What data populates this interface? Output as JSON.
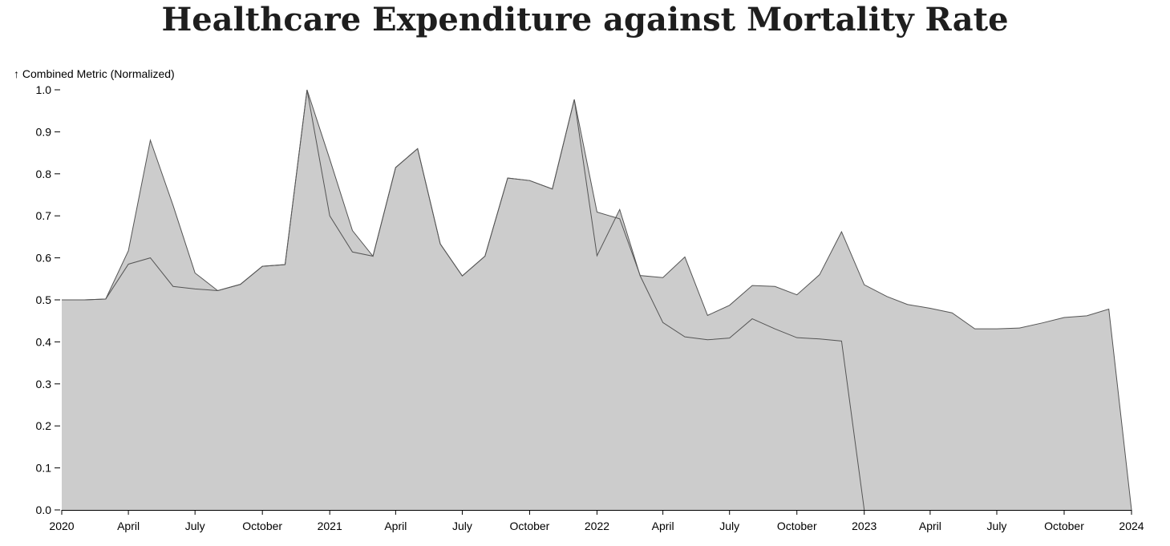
{
  "chart_data": {
    "type": "area",
    "title": "Healthcare Expenditure against Mortality Rate",
    "ylabel": "↑ Combined Metric (Normalized)",
    "xlabel": "",
    "xlim": [
      "2020-01-01",
      "2024-01-01"
    ],
    "ylim": [
      0,
      1.0
    ],
    "grid": false,
    "fill_color": "#cccccc",
    "stroke_color": "#555555",
    "y_ticks": [
      "0.0",
      "0.1",
      "0.2",
      "0.3",
      "0.4",
      "0.5",
      "0.6",
      "0.7",
      "0.8",
      "0.9",
      "1.0"
    ],
    "x_ticks": [
      {
        "date": "2020-01-01",
        "label": "2020"
      },
      {
        "date": "2020-04-01",
        "label": "April"
      },
      {
        "date": "2020-07-01",
        "label": "July"
      },
      {
        "date": "2020-10-01",
        "label": "October"
      },
      {
        "date": "2021-01-01",
        "label": "2021"
      },
      {
        "date": "2021-04-01",
        "label": "April"
      },
      {
        "date": "2021-07-01",
        "label": "July"
      },
      {
        "date": "2021-10-01",
        "label": "October"
      },
      {
        "date": "2022-01-01",
        "label": "2022"
      },
      {
        "date": "2022-04-01",
        "label": "April"
      },
      {
        "date": "2022-07-01",
        "label": "July"
      },
      {
        "date": "2022-10-01",
        "label": "October"
      },
      {
        "date": "2023-01-01",
        "label": "2023"
      },
      {
        "date": "2023-04-01",
        "label": "April"
      },
      {
        "date": "2023-07-01",
        "label": "July"
      },
      {
        "date": "2023-10-01",
        "label": "October"
      },
      {
        "date": "2024-01-01",
        "label": "2024"
      }
    ],
    "series": [
      {
        "x": [
          "2020-01-01",
          "2020-02-01",
          "2020-03-01",
          "2020-04-01",
          "2020-05-01",
          "2020-06-01",
          "2020-07-01",
          "2020-08-01",
          "2020-09-01",
          "2020-10-01",
          "2020-11-01",
          "2020-12-01",
          "2021-01-01",
          "2021-02-01",
          "2021-03-01",
          "2021-04-01",
          "2021-05-01",
          "2021-06-01",
          "2021-07-01",
          "2021-08-01",
          "2021-09-01",
          "2021-10-01",
          "2021-11-01",
          "2021-12-01",
          "2022-01-01",
          "2022-02-01",
          "2022-03-01",
          "2022-04-01",
          "2022-05-01",
          "2022-06-01",
          "2022-07-01",
          "2022-08-01",
          "2022-09-01",
          "2022-10-01",
          "2022-11-01",
          "2022-12-01",
          "2023-01-01"
        ],
        "values": [
          0.5,
          0.5,
          0.502,
          0.585,
          0.6,
          0.532,
          0.526,
          0.522,
          0.537,
          0.58,
          0.584,
          1.0,
          0.7,
          0.614,
          0.604,
          0.815,
          0.86,
          0.633,
          0.557,
          0.604,
          0.79,
          0.784,
          0.764,
          0.977,
          0.605,
          0.715,
          0.557,
          0.446,
          0.412,
          0.405,
          0.409,
          0.455,
          0.431,
          0.41,
          0.407,
          0.402,
          0.0
        ]
      },
      {
        "x": [
          "2020-01-01",
          "2020-02-01",
          "2020-03-01",
          "2020-04-01",
          "2020-05-01",
          "2020-06-01",
          "2020-07-01",
          "2020-08-01",
          "2020-09-01",
          "2020-10-01",
          "2020-11-01",
          "2020-12-01",
          "2021-01-01",
          "2021-02-01",
          "2021-03-01",
          "2021-04-01",
          "2021-05-01",
          "2021-06-01",
          "2021-07-01",
          "2021-08-01",
          "2021-09-01",
          "2021-10-01",
          "2021-11-01",
          "2021-12-01",
          "2022-01-01",
          "2022-02-01",
          "2022-03-01",
          "2022-04-01",
          "2022-05-01",
          "2022-06-01",
          "2022-07-01",
          "2022-08-01",
          "2022-09-01",
          "2022-10-01",
          "2022-11-01",
          "2022-12-01",
          "2023-01-01",
          "2023-02-01",
          "2023-03-01",
          "2023-04-01",
          "2023-05-01",
          "2023-06-01",
          "2023-07-01",
          "2023-08-01",
          "2023-09-01",
          "2023-10-01",
          "2023-11-01",
          "2023-12-01",
          "2024-01-01"
        ],
        "values": [
          0.5,
          0.5,
          0.502,
          0.617,
          0.88,
          0.725,
          0.564,
          0.522,
          0.537,
          0.58,
          0.584,
          1.0,
          0.835,
          0.665,
          0.604,
          0.815,
          0.86,
          0.633,
          0.557,
          0.604,
          0.79,
          0.784,
          0.764,
          0.977,
          0.709,
          0.693,
          0.558,
          0.553,
          0.602,
          0.463,
          0.487,
          0.534,
          0.532,
          0.512,
          0.56,
          0.662,
          0.536,
          0.508,
          0.489,
          0.48,
          0.469,
          0.431,
          0.431,
          0.433,
          0.445,
          0.458,
          0.462,
          0.478,
          0.0
        ]
      }
    ]
  }
}
